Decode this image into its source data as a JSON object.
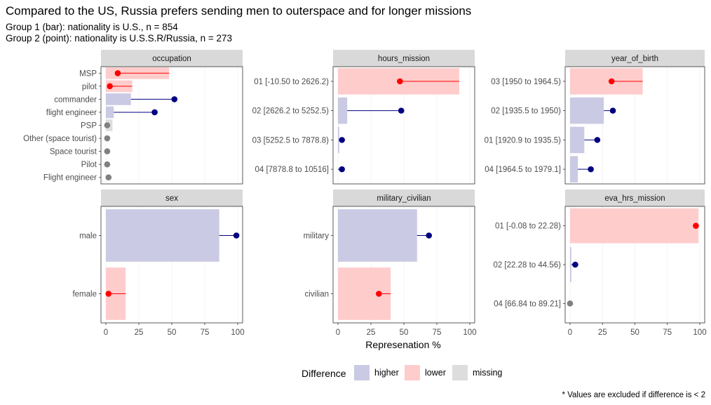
{
  "title": "Compared to the US, Russia prefers sending men to outerspace and for longer missions",
  "subtitle_lines": [
    "Group 1 (bar): nationality is U.S., n = 854",
    "Group 2 (point): nationality is U.S.S.R/Russia, n = 273"
  ],
  "caption": "* Values are excluded if difference is < 2",
  "colors": {
    "higher": "#cacae4",
    "lower": "#ffcccc",
    "missing": "#dddddd",
    "point_higher": "#000080",
    "point_lower": "#ff0000",
    "point_missing": "#808080",
    "strip": "#d9d9d9"
  },
  "legend": {
    "title": "Difference",
    "items": [
      {
        "key": "higher",
        "label": "higher"
      },
      {
        "key": "lower",
        "label": "lower"
      },
      {
        "key": "missing",
        "label": "missing"
      }
    ]
  },
  "chart_data": {
    "type": "bar",
    "xlabel": "Represenation %",
    "xlim": [
      0,
      100
    ],
    "x_ticks": [
      0,
      25,
      50,
      75,
      100
    ],
    "facets": [
      {
        "name": "occupation",
        "categories": [
          {
            "label": "MSP",
            "bar": 48,
            "point": 9,
            "difference": "lower"
          },
          {
            "label": "pilot",
            "bar": 20,
            "point": 3,
            "difference": "lower"
          },
          {
            "label": "commander",
            "bar": 19,
            "point": 52,
            "difference": "higher"
          },
          {
            "label": "flight engineer",
            "bar": 6,
            "point": 37,
            "difference": "higher"
          },
          {
            "label": "PSP",
            "bar": 5,
            "point": 1,
            "difference": "missing"
          },
          {
            "label": "Other (space tourist)",
            "bar": 0,
            "point": 1,
            "difference": "missing"
          },
          {
            "label": "Space tourist",
            "bar": 0,
            "point": 1,
            "difference": "missing"
          },
          {
            "label": "Pilot",
            "bar": 0,
            "point": 1,
            "difference": "missing"
          },
          {
            "label": "Flight engineer",
            "bar": 0,
            "point": 2,
            "difference": "missing"
          }
        ]
      },
      {
        "name": "hours_mission",
        "categories": [
          {
            "label": "01 [-10.50 to 2626.2)",
            "bar": 92,
            "point": 47,
            "difference": "lower"
          },
          {
            "label": "02 [2626.2 to 5252.5)",
            "bar": 7,
            "point": 48,
            "difference": "higher"
          },
          {
            "label": "03 [5252.5 to 7878.8)",
            "bar": 1,
            "point": 3,
            "difference": "higher"
          },
          {
            "label": "04 [7878.8 to 10516]",
            "bar": 0,
            "point": 3,
            "difference": "higher"
          }
        ]
      },
      {
        "name": "year_of_birth",
        "categories": [
          {
            "label": "03 [1950 to 1964.5)",
            "bar": 56,
            "point": 32,
            "difference": "lower"
          },
          {
            "label": "02 [1935.5 to 1950)",
            "bar": 26,
            "point": 33,
            "difference": "higher"
          },
          {
            "label": "01 [1920.9 to 1935.5)",
            "bar": 11,
            "point": 21,
            "difference": "higher"
          },
          {
            "label": "04 [1964.5 to 1979.1]",
            "bar": 6,
            "point": 16,
            "difference": "higher"
          }
        ]
      },
      {
        "name": "sex",
        "categories": [
          {
            "label": "male",
            "bar": 86,
            "point": 99,
            "difference": "higher"
          },
          {
            "label": "female",
            "bar": 15,
            "point": 2,
            "difference": "lower"
          }
        ]
      },
      {
        "name": "military_civilian",
        "categories": [
          {
            "label": "military",
            "bar": 60,
            "point": 69,
            "difference": "higher"
          },
          {
            "label": "civilian",
            "bar": 40,
            "point": 31,
            "difference": "lower"
          }
        ]
      },
      {
        "name": "eva_hrs_mission",
        "categories": [
          {
            "label": "01 [-0.08 to 22.28)",
            "bar": 99,
            "point": 97,
            "difference": "lower"
          },
          {
            "label": "02 [22.28 to 44.56)",
            "bar": 1,
            "point": 4,
            "difference": "higher"
          },
          {
            "label": "04 [66.84 to 89.21]",
            "bar": 0,
            "point": 0,
            "difference": "missing"
          }
        ]
      }
    ]
  }
}
